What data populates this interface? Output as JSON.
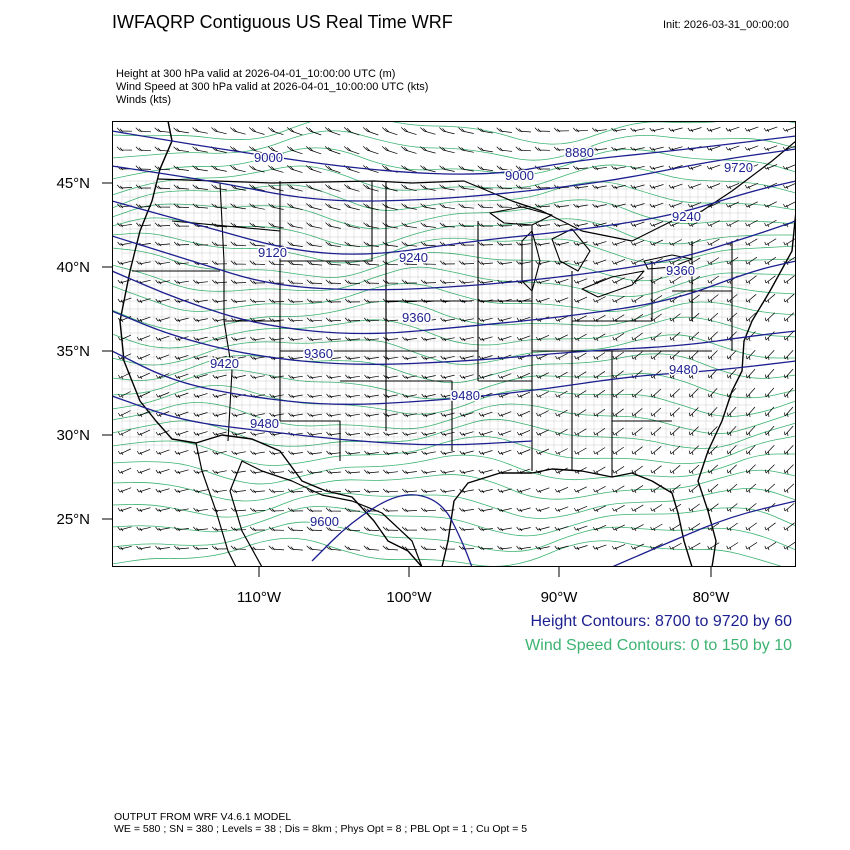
{
  "header": {
    "title": "IWFAQRP Contiguous US Real Time WRF",
    "init": "Init: 2026-03-31_00:00:00"
  },
  "subtitles": [
    "Height at 300 hPa valid at 2026-04-01_10:00:00 UTC   (m)",
    "Wind Speed at 300 hPa valid at 2026-04-01_10:00:00 UTC   (kts)",
    "Winds   (kts)"
  ],
  "axes": {
    "lat_labels": [
      "45°N",
      "40°N",
      "35°N",
      "30°N",
      "25°N"
    ],
    "lon_labels": [
      "110°W",
      "100°W",
      "90°W",
      "80°W"
    ]
  },
  "map": {
    "height_contour_labels": [
      "9000",
      "8880",
      "9000",
      "9720",
      "9120",
      "9240",
      "9240",
      "9360",
      "9360",
      "9360",
      "9420",
      "9480",
      "9480",
      "9480",
      "9600"
    ],
    "colors": {
      "height_contour": "#1c1f8f",
      "wind_speed_contour": "#3cb371",
      "land_borders": "#000000",
      "county_lines": "#3a3a3a",
      "wind_barbs": "#000000"
    }
  },
  "legend": {
    "height": "Height Contours: 8700 to 9720 by 60",
    "wind": "Wind Speed Contours: 0 to 150 by 10"
  },
  "footer": {
    "line1": "OUTPUT FROM WRF V4.6.1 MODEL",
    "line2": "WE = 580 ; SN = 380 ; Levels = 38 ; Dis = 8km ; Phys Opt = 8 ; PBL Opt = 1 ; Cu Opt = 5"
  }
}
